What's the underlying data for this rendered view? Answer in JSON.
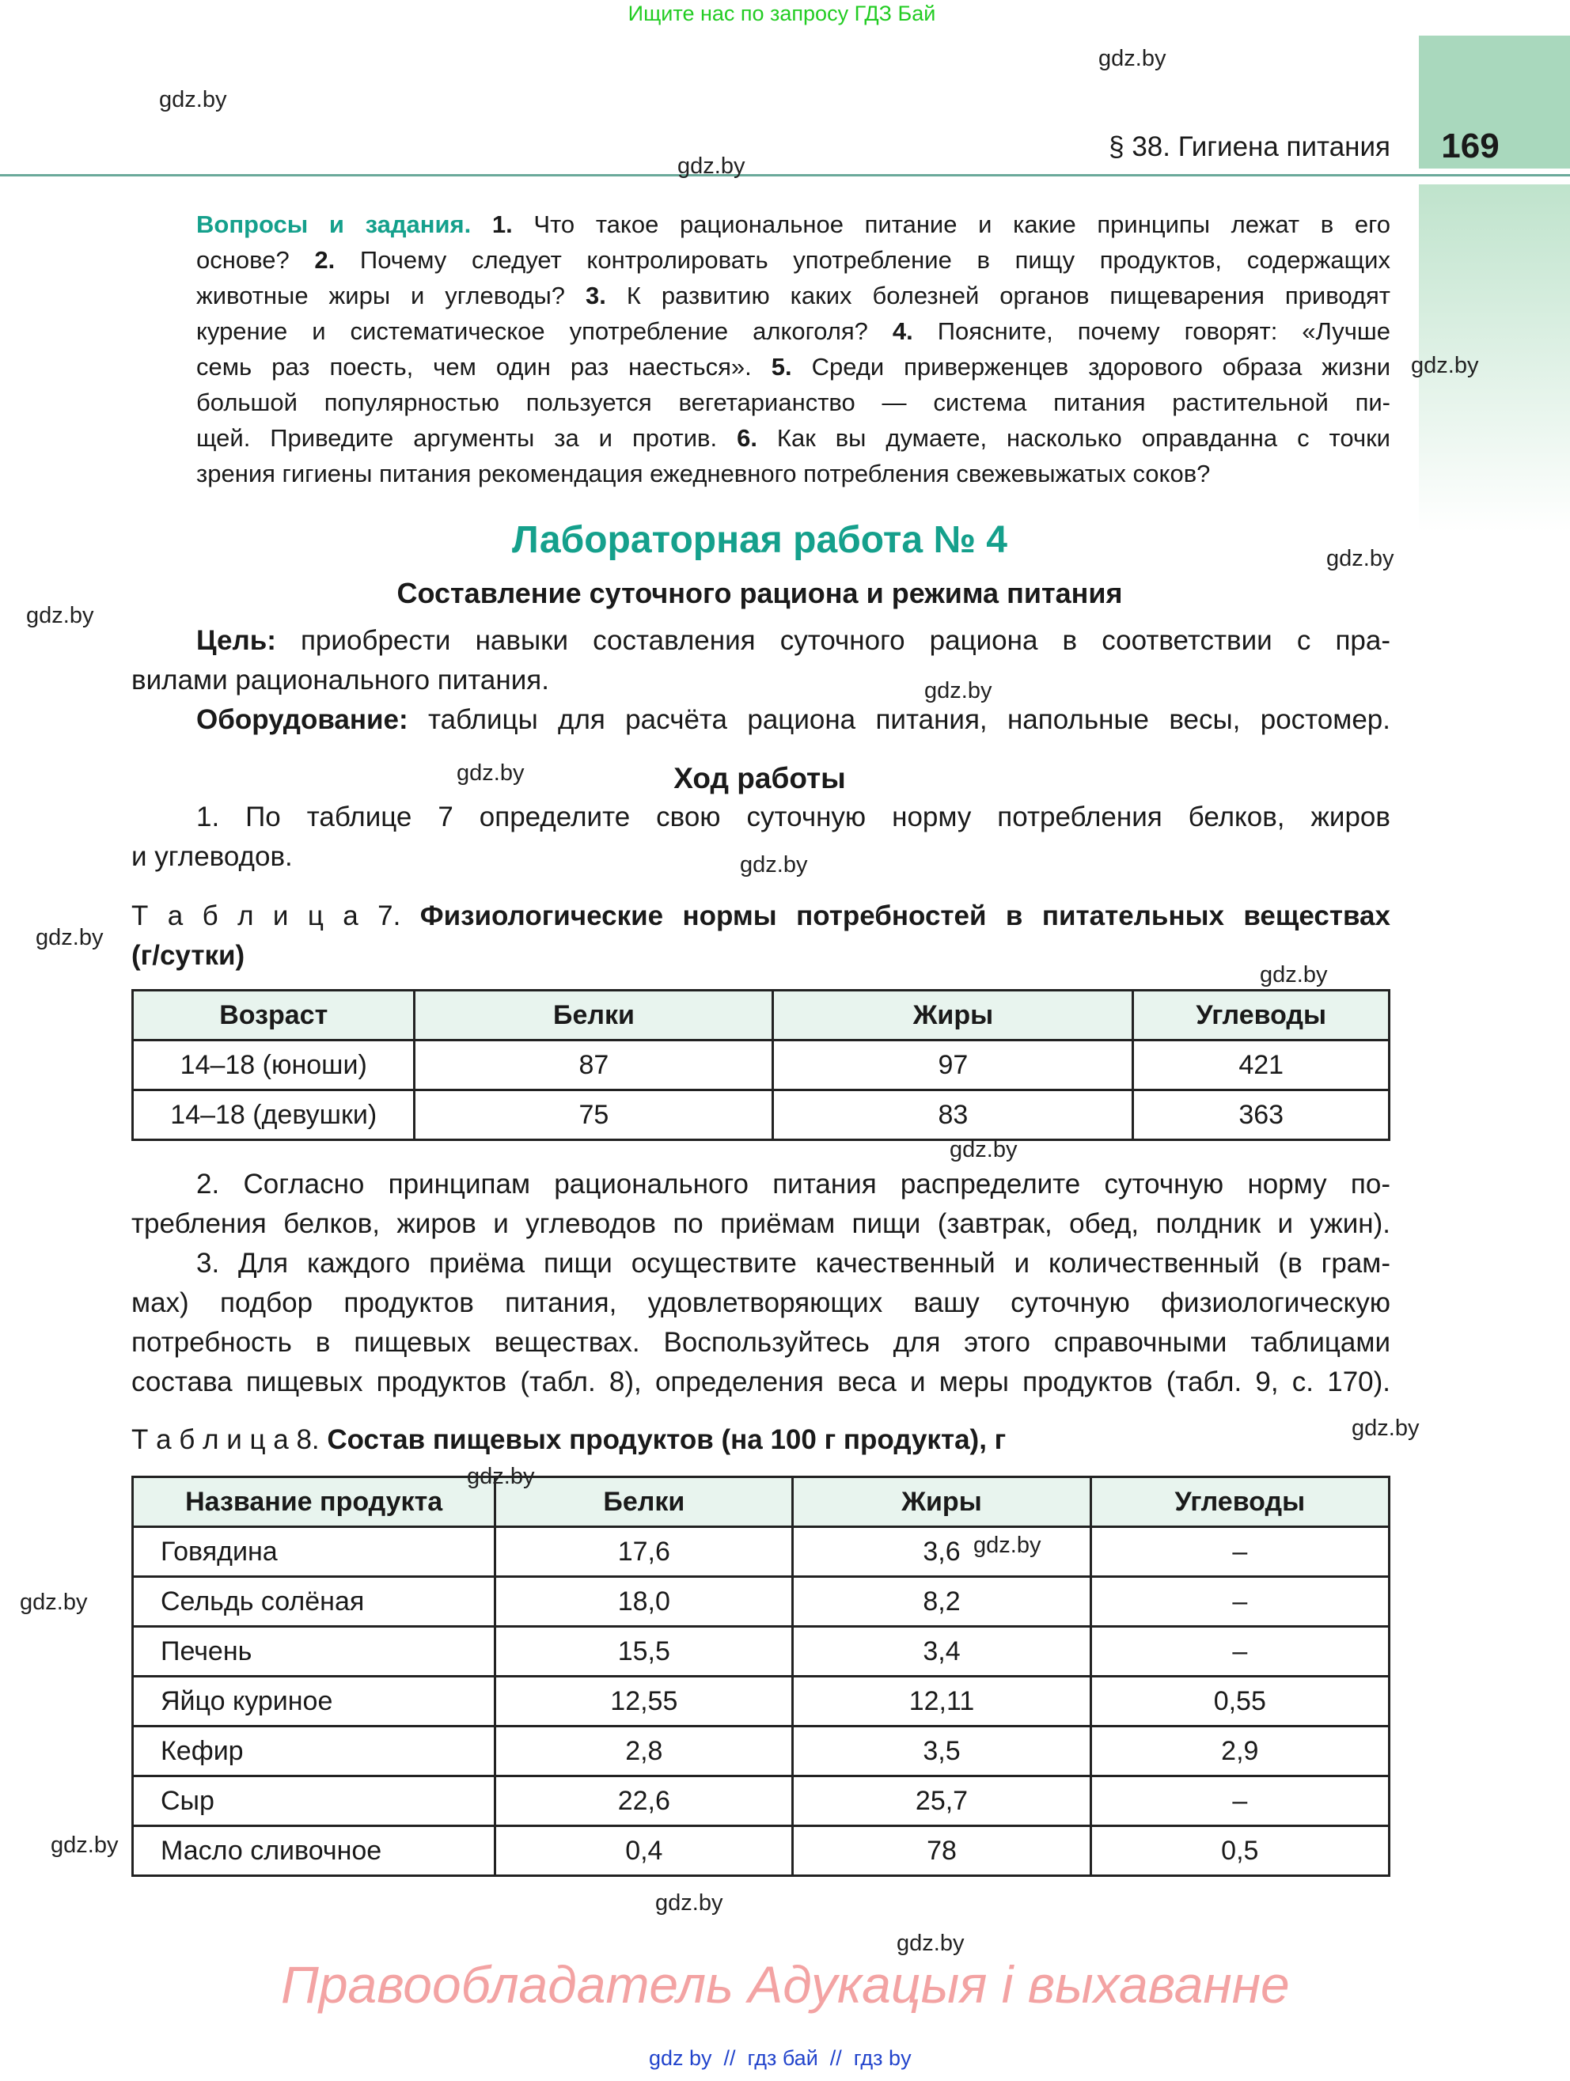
{
  "banner": "Ищите нас по запросу ГДЗ Бай",
  "header": {
    "section": "§ 38. Гигиена питания",
    "page_number": "169"
  },
  "watermarks": [
    "gdz.by",
    "gdz.by",
    "gdz.by",
    "gdz.by",
    "gdz.by",
    "gdz.by",
    "gdz.by",
    "gdz.by",
    "gdz.by",
    "gdz.by",
    "gdz.by",
    "gdz.by",
    "gdz.by",
    "gdz.by",
    "gdz.by",
    "gdz.by",
    "gdz.by",
    "gdz.by",
    "gdz.by"
  ],
  "questions": [
    [
      {
        "t": "Вопросы и задания. ",
        "s": "teal"
      },
      {
        "t": "1. ",
        "s": "b"
      },
      {
        "t": "Что такое рациональное питание и какие принципы лежат в его"
      }
    ],
    [
      {
        "t": "основе? "
      },
      {
        "t": "2. ",
        "s": "b"
      },
      {
        "t": "Почему следует контролировать употребление в пищу продуктов, содержащих"
      }
    ],
    [
      {
        "t": "животные жиры и углеводы? "
      },
      {
        "t": "3. ",
        "s": "b"
      },
      {
        "t": "К развитию каких болезней органов пищеварения приводят"
      }
    ],
    [
      {
        "t": "курение и систематическое употребление алкоголя? "
      },
      {
        "t": "4. ",
        "s": "b"
      },
      {
        "t": "Поясните, почему говорят: «Лучше"
      }
    ],
    [
      {
        "t": "семь раз поесть, чем один раз наесться». "
      },
      {
        "t": "5. ",
        "s": "b"
      },
      {
        "t": "Среди приверженцев здорового образа жизни"
      }
    ],
    [
      {
        "t": "большой популярностью пользуется вегетарианство — система питания растительной пи-"
      }
    ],
    [
      {
        "t": "щей. Приведите аргументы за и против. "
      },
      {
        "t": "6. ",
        "s": "b"
      },
      {
        "t": "Как вы думаете, насколько оправданна с точки"
      }
    ],
    [
      {
        "t": "зрения гигиены питания рекомендация ежедневного потребления свежевыжатых соков?",
        "last": "left"
      }
    ]
  ],
  "lab": {
    "title": "Лабораторная работа № 4",
    "subtitle": "Составление суточного рациона и режима питания",
    "goal": [
      [
        {
          "t": "Цель: ",
          "s": "b"
        },
        {
          "t": "приобрести навыки составления суточного рациона в соответствии с пра-"
        }
      ],
      [
        {
          "t": "вилами рационального питания.",
          "last": "left"
        }
      ]
    ],
    "equipment": [
      [
        {
          "t": "Оборудование: ",
          "s": "b"
        },
        {
          "t": "таблицы для расчёта рациона питания, напольные весы, ростомер."
        }
      ]
    ],
    "procedure_title": "Ход работы",
    "step1": [
      [
        {
          "t": "1. По таблице 7 определите свою суточную норму потребления белков, жиров"
        }
      ],
      [
        {
          "t": "и углеводов.",
          "last": "left"
        }
      ]
    ],
    "table7_caption": [
      [
        {
          "t": "Т а б л и ц а  7. "
        },
        {
          "t": "Физиологические нормы потребностей в питательных веществах",
          "s": "b"
        }
      ],
      [
        {
          "t": "(г/сутки)",
          "s": "b",
          "last": "left"
        }
      ]
    ],
    "table7": {
      "headers": [
        "Возраст",
        "Белки",
        "Жиры",
        "Углеводы"
      ],
      "rows": [
        [
          "14–18 (юноши)",
          "87",
          "97",
          "421"
        ],
        [
          "14–18 (девушки)",
          "75",
          "83",
          "363"
        ]
      ]
    },
    "steps23": [
      [
        {
          "t": "2. Согласно принципам рационального питания распределите суточную норму по-"
        }
      ],
      [
        {
          "t": "требления белков, жиров и углеводов по приёмам пищи (завтрак, обед, полдник и ужин)."
        }
      ],
      [
        {
          "t": "3. Для каждого приёма пищи осуществите качественный и количественный (в грам-"
        }
      ],
      [
        {
          "t": "мах) подбор продуктов питания, удовлетворяющих вашу суточную физиологическую"
        }
      ],
      [
        {
          "t": "потребность в пищевых веществах. Воспользуйтесь для этого справочными таблицами"
        }
      ],
      [
        {
          "t": "состава пищевых продуктов (табл. 8), определения веса и меры продуктов (табл. 9, с. 170)."
        }
      ]
    ],
    "table8_caption": [
      [
        {
          "t": "Т а б л и ц а  8. "
        },
        {
          "t": "Состав пищевых продуктов (на 100 г продукта), г",
          "s": "b",
          "last": "left"
        }
      ]
    ],
    "table8": {
      "headers": [
        "Название продукта",
        "Белки",
        "Жиры",
        "Углеводы"
      ],
      "rows": [
        [
          "Говядина",
          "17,6",
          "3,6",
          "–"
        ],
        [
          "Сельдь солёная",
          "18,0",
          "8,2",
          "–"
        ],
        [
          "Печень",
          "15,5",
          "3,4",
          "–"
        ],
        [
          "Яйцо куриное",
          "12,55",
          "12,11",
          "0,55"
        ],
        [
          "Кефир",
          "2,8",
          "3,5",
          "2,9"
        ],
        [
          "Сыр",
          "22,6",
          "25,7",
          "–"
        ],
        [
          "Масло сливочное",
          "0,4",
          "78",
          "0,5"
        ]
      ]
    }
  },
  "copyright": "Правообладатель Адукацыя і выхаванне",
  "footer": "gdz by  //  гдз бай  //  гдз by",
  "colors": {
    "accent": "#15a08c",
    "banner": "#22cc22",
    "tab": "#a9d8bd",
    "rule": "#6aa99a",
    "copyright": "#f3a3a3",
    "footer": "#2244cc"
  }
}
